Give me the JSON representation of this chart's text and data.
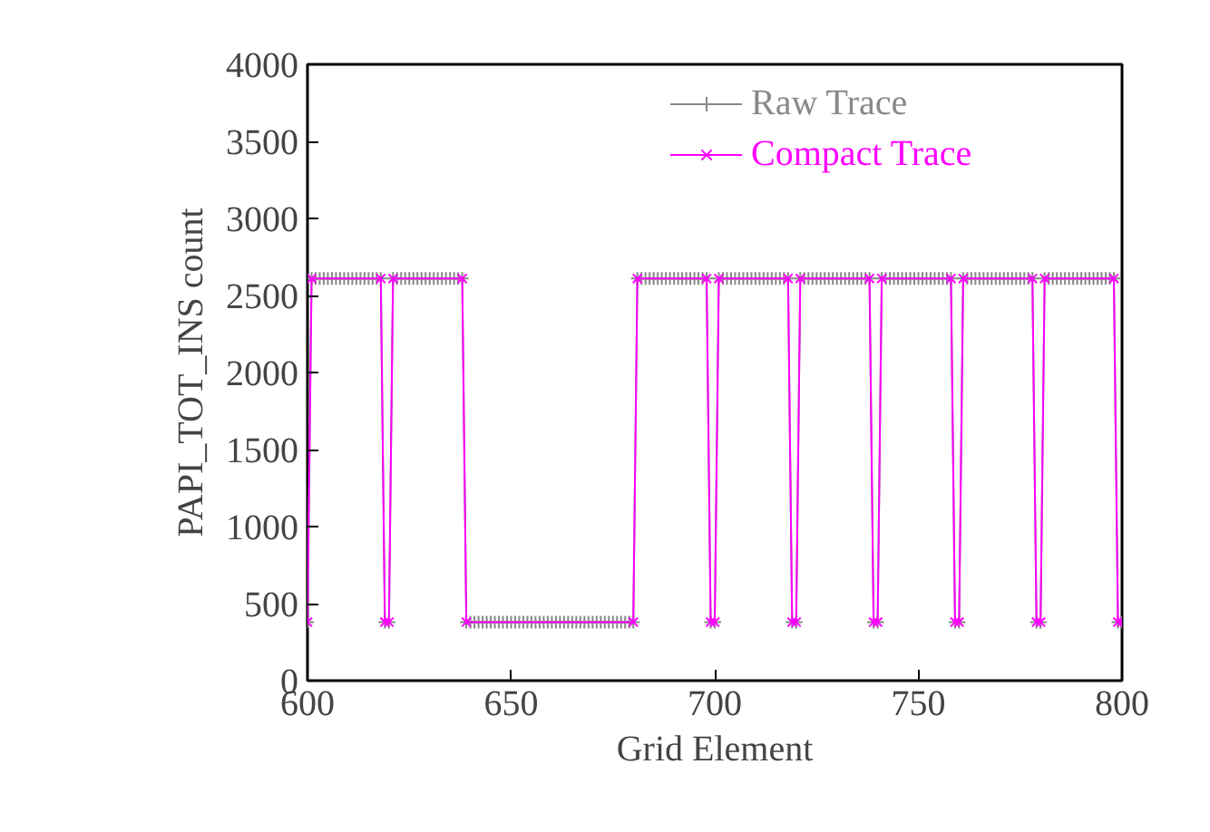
{
  "chart_data": {
    "type": "line",
    "xlabel": "Grid Element",
    "ylabel": "PAPI_TOT_INS count",
    "xlim": [
      600,
      800
    ],
    "ylim": [
      0,
      4000
    ],
    "xticks": [
      600,
      650,
      700,
      750,
      800
    ],
    "yticks": [
      0,
      500,
      1000,
      1500,
      2000,
      2500,
      3000,
      3500,
      4000
    ],
    "grid": false,
    "legend": "top right",
    "series": [
      {
        "name": "Raw Trace",
        "color": "#888888",
        "marker": "cross",
        "x": [
          600,
          601,
          602,
          603,
          604,
          605,
          606,
          607,
          608,
          609,
          610,
          611,
          612,
          613,
          614,
          615,
          616,
          617,
          618,
          619,
          620,
          621,
          622,
          623,
          624,
          625,
          626,
          627,
          628,
          629,
          630,
          631,
          632,
          633,
          634,
          635,
          636,
          637,
          638,
          639,
          640,
          641,
          642,
          643,
          644,
          645,
          646,
          647,
          648,
          649,
          650,
          651,
          652,
          653,
          654,
          655,
          656,
          657,
          658,
          659,
          660,
          661,
          662,
          663,
          664,
          665,
          666,
          667,
          668,
          669,
          670,
          671,
          672,
          673,
          674,
          675,
          676,
          677,
          678,
          679,
          680,
          681,
          682,
          683,
          684,
          685,
          686,
          687,
          688,
          689,
          690,
          691,
          692,
          693,
          694,
          695,
          696,
          697,
          698,
          699,
          700,
          701,
          702,
          703,
          704,
          705,
          706,
          707,
          708,
          709,
          710,
          711,
          712,
          713,
          714,
          715,
          716,
          717,
          718,
          719,
          720,
          721,
          722,
          723,
          724,
          725,
          726,
          727,
          728,
          729,
          730,
          731,
          732,
          733,
          734,
          735,
          736,
          737,
          738,
          739,
          740,
          741,
          742,
          743,
          744,
          745,
          746,
          747,
          748,
          749,
          750,
          751,
          752,
          753,
          754,
          755,
          756,
          757,
          758,
          759,
          760,
          761,
          762,
          763,
          764,
          765,
          766,
          767,
          768,
          769,
          770,
          771,
          772,
          773,
          774,
          775,
          776,
          777,
          778,
          779,
          780,
          781,
          782,
          783,
          784,
          785,
          786,
          787,
          788,
          789,
          790,
          791,
          792,
          793,
          794,
          795,
          796,
          797,
          798,
          799,
          800
        ],
        "values": [
          380,
          2610,
          2610,
          2610,
          2610,
          2610,
          2610,
          2610,
          2610,
          2610,
          2610,
          2610,
          2610,
          2610,
          2610,
          2610,
          2610,
          2610,
          2610,
          380,
          380,
          2610,
          2610,
          2610,
          2610,
          2610,
          2610,
          2610,
          2610,
          2610,
          2610,
          2610,
          2610,
          2610,
          2610,
          2610,
          2610,
          2610,
          2610,
          380,
          380,
          380,
          380,
          380,
          380,
          380,
          380,
          380,
          380,
          380,
          380,
          380,
          380,
          380,
          380,
          380,
          380,
          380,
          380,
          380,
          380,
          380,
          380,
          380,
          380,
          380,
          380,
          380,
          380,
          380,
          380,
          380,
          380,
          380,
          380,
          380,
          380,
          380,
          380,
          380,
          380,
          2610,
          2610,
          2610,
          2610,
          2610,
          2610,
          2610,
          2610,
          2610,
          2610,
          2610,
          2610,
          2610,
          2610,
          2610,
          2610,
          2610,
          2610,
          380,
          380,
          2610,
          2610,
          2610,
          2610,
          2610,
          2610,
          2610,
          2610,
          2610,
          2610,
          2610,
          2610,
          2610,
          2610,
          2610,
          2610,
          2610,
          2610,
          380,
          380,
          2610,
          2610,
          2610,
          2610,
          2610,
          2610,
          2610,
          2610,
          2610,
          2610,
          2610,
          2610,
          2610,
          2610,
          2610,
          2610,
          2610,
          2610,
          380,
          380,
          2610,
          2610,
          2610,
          2610,
          2610,
          2610,
          2610,
          2610,
          2610,
          2610,
          2610,
          2610,
          2610,
          2610,
          2610,
          2610,
          2610,
          2610,
          380,
          380,
          2610,
          2610,
          2610,
          2610,
          2610,
          2610,
          2610,
          2610,
          2610,
          2610,
          2610,
          2610,
          2610,
          2610,
          2610,
          2610,
          2610,
          2610,
          380,
          380,
          2610,
          2610,
          2610,
          2610,
          2610,
          2610,
          2610,
          2610,
          2610,
          2610,
          2610,
          2610,
          2610,
          2610,
          2610,
          2610,
          2610,
          2610,
          380,
          380
        ]
      },
      {
        "name": "Compact Trace",
        "color": "#ff00ff",
        "marker": "x",
        "x": [
          600,
          601,
          618,
          619,
          620,
          621,
          638,
          639,
          680,
          681,
          698,
          699,
          700,
          701,
          718,
          719,
          720,
          721,
          738,
          739,
          740,
          741,
          758,
          759,
          760,
          761,
          778,
          779,
          780,
          781,
          798,
          799,
          800
        ],
        "values": [
          380,
          2610,
          2610,
          380,
          380,
          2610,
          2610,
          380,
          380,
          2610,
          2610,
          380,
          380,
          2610,
          2610,
          380,
          380,
          2610,
          2610,
          380,
          380,
          2610,
          2610,
          380,
          380,
          2610,
          2610,
          380,
          380,
          2610,
          2610,
          380,
          380
        ]
      }
    ]
  }
}
